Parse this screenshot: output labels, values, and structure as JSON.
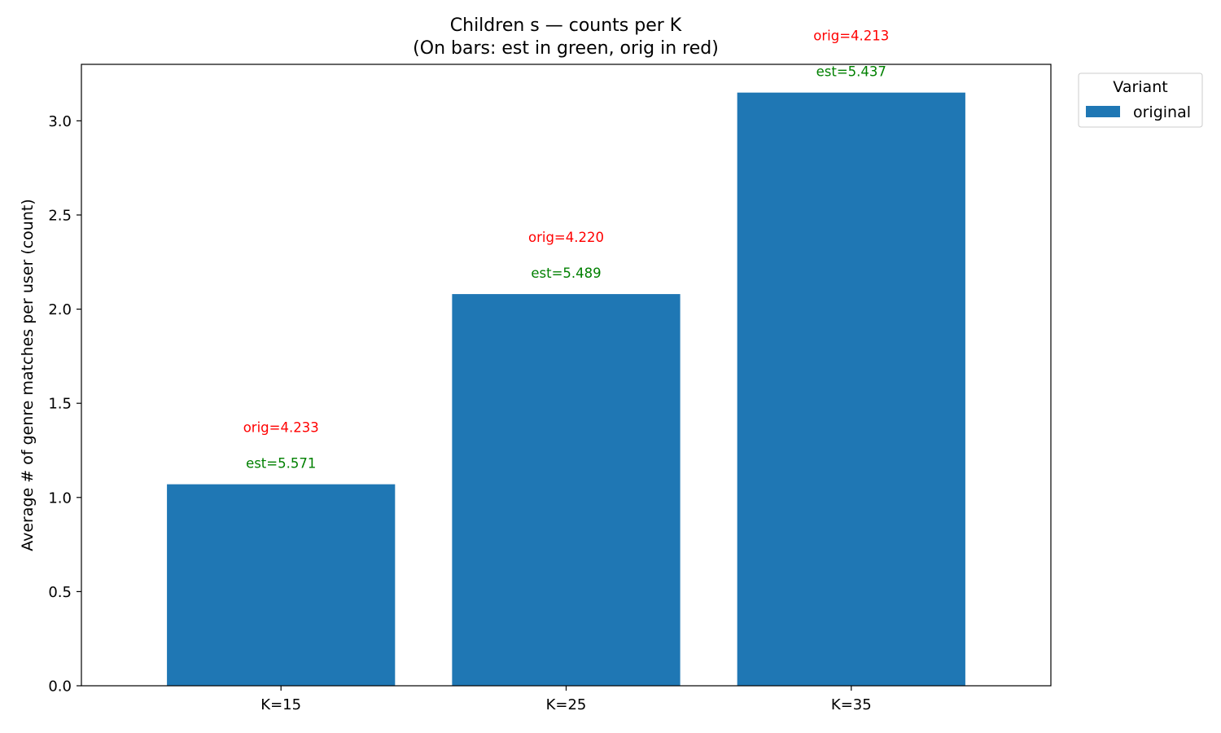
{
  "chart_data": {
    "type": "bar",
    "title": "Children s — counts per K",
    "subtitle": "(On bars: est in green, orig in red)",
    "xlabel": "",
    "ylabel": "Average # of genre matches per user (count)",
    "categories": [
      "K=15",
      "K=25",
      "K=35"
    ],
    "series": [
      {
        "name": "original",
        "values": [
          1.07,
          2.08,
          3.15
        ],
        "color": "#1f77b4"
      }
    ],
    "annotations": [
      {
        "category": "K=15",
        "est": "est=5.571",
        "orig": "orig=4.233"
      },
      {
        "category": "K=25",
        "est": "est=5.489",
        "orig": "orig=4.220"
      },
      {
        "category": "K=35",
        "est": "est=5.437",
        "orig": "orig=4.213"
      }
    ],
    "annotation_colors": {
      "est": "#008000",
      "orig": "#ff0000"
    },
    "ylim": [
      0,
      3.3
    ],
    "yticks": [
      "0.0",
      "0.5",
      "1.0",
      "1.5",
      "2.0",
      "2.5",
      "3.0"
    ],
    "grid": false,
    "legend": {
      "title": "Variant",
      "placement": "outside-top-right"
    }
  }
}
